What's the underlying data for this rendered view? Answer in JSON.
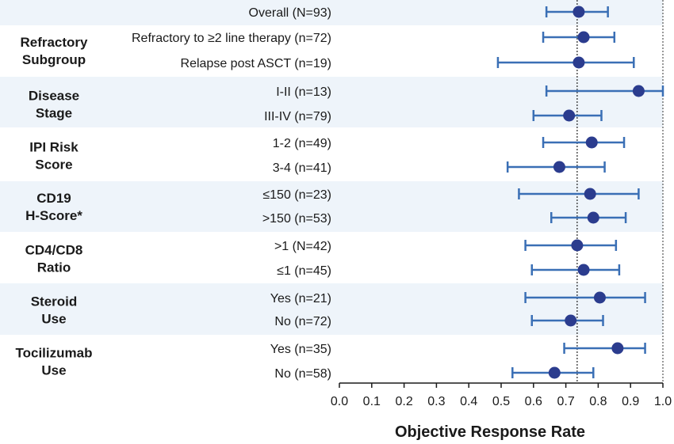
{
  "chart_data": {
    "type": "forest",
    "xlabel": "Objective Response Rate",
    "xlim": [
      0.0,
      1.0
    ],
    "xticks": [
      "0.0",
      "0.1",
      "0.2",
      "0.3",
      "0.4",
      "0.5",
      "0.6",
      "0.7",
      "0.8",
      "0.9",
      "1.0"
    ],
    "reference_line": 0.735,
    "colors": {
      "marker": "#2b3c8e",
      "ci_line": "#3a6fb5",
      "band": "#eef4fa",
      "axis": "#1a1a1a"
    },
    "groups": [
      {
        "name": "",
        "lines": [],
        "shaded": true,
        "rows": [
          {
            "label": "Overall (N=93)",
            "est": 0.74,
            "lo": 0.64,
            "hi": 0.83
          }
        ]
      },
      {
        "name": "Refractory Subgroup",
        "lines": [
          "Refractory",
          "Subgroup"
        ],
        "shaded": false,
        "rows": [
          {
            "label": "Refractory to ≥2 line therapy (n=72)",
            "est": 0.755,
            "lo": 0.63,
            "hi": 0.85
          },
          {
            "label": "Relapse post ASCT (n=19)",
            "est": 0.74,
            "lo": 0.49,
            "hi": 0.91
          }
        ]
      },
      {
        "name": "Disease Stage",
        "lines": [
          "Disease",
          "Stage"
        ],
        "shaded": true,
        "rows": [
          {
            "label": "I-II (n=13)",
            "est": 0.925,
            "lo": 0.64,
            "hi": 1.0
          },
          {
            "label": "III-IV (n=79)",
            "est": 0.71,
            "lo": 0.6,
            "hi": 0.81
          }
        ]
      },
      {
        "name": "IPI Risk Score",
        "lines": [
          "IPI Risk",
          "Score"
        ],
        "shaded": false,
        "rows": [
          {
            "label": "1-2 (n=49)",
            "est": 0.78,
            "lo": 0.63,
            "hi": 0.88
          },
          {
            "label": "3-4 (n=41)",
            "est": 0.68,
            "lo": 0.52,
            "hi": 0.82
          }
        ]
      },
      {
        "name": "CD19 H-Score*",
        "lines": [
          "CD19",
          "H-Score*"
        ],
        "shaded": true,
        "rows": [
          {
            "label": "≤150 (n=23)",
            "est": 0.775,
            "lo": 0.555,
            "hi": 0.925
          },
          {
            "label": ">150 (n=53)",
            "est": 0.785,
            "lo": 0.655,
            "hi": 0.885
          }
        ]
      },
      {
        "name": "CD4/CD8 Ratio",
        "lines": [
          "CD4/CD8",
          "Ratio"
        ],
        "shaded": false,
        "rows": [
          {
            "label": ">1 (N=42)",
            "est": 0.735,
            "lo": 0.575,
            "hi": 0.855
          },
          {
            "label": "≤1 (n=45)",
            "est": 0.755,
            "lo": 0.595,
            "hi": 0.865
          }
        ]
      },
      {
        "name": "Steroid Use",
        "lines": [
          "Steroid",
          "Use"
        ],
        "shaded": true,
        "rows": [
          {
            "label": "Yes (n=21)",
            "est": 0.805,
            "lo": 0.575,
            "hi": 0.945
          },
          {
            "label": "No (n=72)",
            "est": 0.715,
            "lo": 0.595,
            "hi": 0.815
          }
        ]
      },
      {
        "name": "Tocilizumab Use",
        "lines": [
          "Tocilizumab",
          "Use"
        ],
        "shaded": false,
        "rows": [
          {
            "label": "Yes (n=35)",
            "est": 0.86,
            "lo": 0.695,
            "hi": 0.945
          },
          {
            "label": "No (n=58)",
            "est": 0.665,
            "lo": 0.535,
            "hi": 0.785
          }
        ]
      }
    ]
  }
}
